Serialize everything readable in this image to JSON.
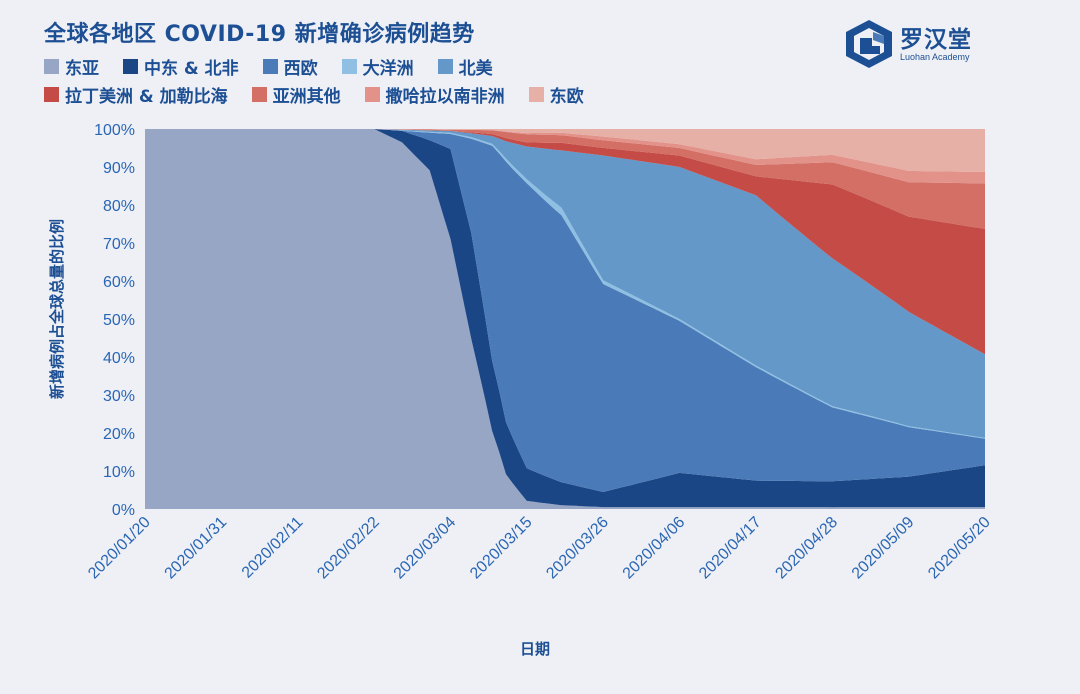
{
  "title": "全球各地区 COVID-19 新增确诊病例趋势",
  "logo": {
    "name": "罗汉堂",
    "sub": "Luohan Academy"
  },
  "chart_data": {
    "type": "area",
    "stacked": true,
    "normalized": true,
    "xlabel": "日期",
    "ylabel": "新增病例占全球总量的比例",
    "ylim": [
      0,
      100
    ],
    "y_ticks": [
      "0%",
      "10%",
      "20%",
      "30%",
      "40%",
      "50%",
      "60%",
      "70%",
      "80%",
      "90%",
      "100%"
    ],
    "x_ticks": [
      "2020/01/20",
      "2020/01/31",
      "2020/02/11",
      "2020/02/22",
      "2020/03/04",
      "2020/03/15",
      "2020/03/26",
      "2020/04/06",
      "2020/04/17",
      "2020/04/28",
      "2020/05/09",
      "2020/05/20"
    ],
    "legend_rows": [
      [
        "东亚",
        "中东 & 北非",
        "西欧",
        "大洋洲",
        "北美"
      ],
      [
        "拉丁美洲 & 加勒比海",
        "亚洲其他",
        "撒哈拉以南非洲",
        "东欧"
      ]
    ],
    "legend_placement": "top",
    "series": [
      {
        "name": "东亚",
        "color": "#97a6c4",
        "points": [
          [
            "2020/01/20",
            100
          ],
          [
            "2020/02/22",
            100
          ],
          [
            "2020/02/26",
            97
          ],
          [
            "2020/03/01",
            90
          ],
          [
            "2020/03/04",
            72
          ],
          [
            "2020/03/07",
            45
          ],
          [
            "2020/03/10",
            20
          ],
          [
            "2020/03/12",
            8
          ],
          [
            "2020/03/15",
            2
          ],
          [
            "2020/03/20",
            1
          ],
          [
            "2020/03/26",
            0.5
          ],
          [
            "2020/04/06",
            0.5
          ],
          [
            "2020/05/20",
            0.5
          ]
        ]
      },
      {
        "name": "中东 & 北非",
        "color": "#1b4686",
        "points": [
          [
            "2020/01/20",
            0
          ],
          [
            "2020/02/22",
            0
          ],
          [
            "2020/02/26",
            3
          ],
          [
            "2020/03/01",
            8
          ],
          [
            "2020/03/04",
            24
          ],
          [
            "2020/03/07",
            28
          ],
          [
            "2020/03/10",
            18
          ],
          [
            "2020/03/12",
            12
          ],
          [
            "2020/03/15",
            8
          ],
          [
            "2020/03/20",
            6
          ],
          [
            "2020/03/26",
            4
          ],
          [
            "2020/04/06",
            9
          ],
          [
            "2020/04/17",
            7
          ],
          [
            "2020/04/28",
            7
          ],
          [
            "2020/05/09",
            8
          ],
          [
            "2020/05/20",
            11
          ]
        ]
      },
      {
        "name": "西欧",
        "color": "#4a7bb8",
        "points": [
          [
            "2020/01/20",
            0
          ],
          [
            "2020/02/22",
            0
          ],
          [
            "2020/02/26",
            0
          ],
          [
            "2020/03/01",
            2
          ],
          [
            "2020/03/04",
            4
          ],
          [
            "2020/03/07",
            25
          ],
          [
            "2020/03/10",
            55
          ],
          [
            "2020/03/12",
            60
          ],
          [
            "2020/03/15",
            70
          ],
          [
            "2020/03/20",
            70
          ],
          [
            "2020/03/26",
            55
          ],
          [
            "2020/04/06",
            40
          ],
          [
            "2020/04/17",
            30
          ],
          [
            "2020/04/28",
            20
          ],
          [
            "2020/05/09",
            13
          ],
          [
            "2020/05/20",
            7
          ]
        ]
      },
      {
        "name": "大洋洲",
        "color": "#8fbfe3",
        "points": [
          [
            "2020/01/20",
            0
          ],
          [
            "2020/02/22",
            0
          ],
          [
            "2020/03/10",
            0.5
          ],
          [
            "2020/03/15",
            1
          ],
          [
            "2020/03/20",
            2
          ],
          [
            "2020/03/26",
            1
          ],
          [
            "2020/04/06",
            0.5
          ],
          [
            "2020/05/20",
            0.2
          ]
        ]
      },
      {
        "name": "北美",
        "color": "#6398c9",
        "points": [
          [
            "2020/01/20",
            0
          ],
          [
            "2020/02/22",
            0
          ],
          [
            "2020/03/04",
            0.5
          ],
          [
            "2020/03/07",
            1
          ],
          [
            "2020/03/10",
            2
          ],
          [
            "2020/03/12",
            4
          ],
          [
            "2020/03/15",
            8
          ],
          [
            "2020/03/20",
            15
          ],
          [
            "2020/03/26",
            33
          ],
          [
            "2020/04/06",
            40
          ],
          [
            "2020/04/17",
            45
          ],
          [
            "2020/04/28",
            40
          ],
          [
            "2020/05/09",
            30
          ],
          [
            "2020/05/20",
            22
          ]
        ]
      },
      {
        "name": "拉丁美洲 & 加勒比海",
        "color": "#c54b47",
        "points": [
          [
            "2020/01/20",
            0
          ],
          [
            "2020/02/22",
            0
          ],
          [
            "2020/03/04",
            0
          ],
          [
            "2020/03/10",
            0.5
          ],
          [
            "2020/03/15",
            1
          ],
          [
            "2020/03/20",
            2
          ],
          [
            "2020/03/26",
            2
          ],
          [
            "2020/04/06",
            3
          ],
          [
            "2020/04/17",
            5
          ],
          [
            "2020/04/28",
            20
          ],
          [
            "2020/05/09",
            25
          ],
          [
            "2020/05/20",
            33
          ]
        ]
      },
      {
        "name": "亚洲其他",
        "color": "#d36f64",
        "points": [
          [
            "2020/01/20",
            0
          ],
          [
            "2020/02/22",
            0
          ],
          [
            "2020/03/04",
            0.3
          ],
          [
            "2020/03/10",
            1
          ],
          [
            "2020/03/15",
            2
          ],
          [
            "2020/03/20",
            2
          ],
          [
            "2020/03/26",
            2
          ],
          [
            "2020/04/06",
            2
          ],
          [
            "2020/04/17",
            3
          ],
          [
            "2020/04/28",
            6
          ],
          [
            "2020/05/09",
            9
          ],
          [
            "2020/05/20",
            12
          ]
        ]
      },
      {
        "name": "撒哈拉以南非洲",
        "color": "#e3928a",
        "points": [
          [
            "2020/01/20",
            0
          ],
          [
            "2020/02/22",
            0
          ],
          [
            "2020/03/10",
            0
          ],
          [
            "2020/03/15",
            0.3
          ],
          [
            "2020/03/26",
            1
          ],
          [
            "2020/04/06",
            1
          ],
          [
            "2020/04/17",
            1.5
          ],
          [
            "2020/04/28",
            2
          ],
          [
            "2020/05/09",
            3
          ],
          [
            "2020/05/20",
            3
          ]
        ]
      },
      {
        "name": "东欧",
        "color": "#e6b0a6",
        "points": [
          [
            "2020/01/20",
            0
          ],
          [
            "2020/02/22",
            0
          ],
          [
            "2020/03/04",
            0.2
          ],
          [
            "2020/03/10",
            0.3
          ],
          [
            "2020/03/15",
            1
          ],
          [
            "2020/03/20",
            1
          ],
          [
            "2020/03/26",
            2
          ],
          [
            "2020/04/06",
            4
          ],
          [
            "2020/04/17",
            8
          ],
          [
            "2020/04/28",
            7
          ],
          [
            "2020/05/09",
            11
          ],
          [
            "2020/05/20",
            11.3
          ]
        ]
      }
    ]
  }
}
